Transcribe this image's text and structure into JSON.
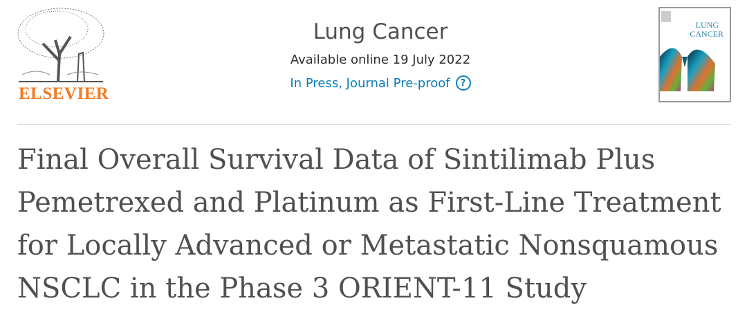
{
  "publisher": {
    "name": "ELSEVIER",
    "brand_color": "#f47a20",
    "logo_icon": "tree-logo-icon"
  },
  "journal": {
    "name": "Lung Cancer",
    "availability": "Available online 19 July 2022",
    "status": "In Press, Journal Pre-proof",
    "status_color": "#0c7dbb",
    "help_icon": "question-circle-icon"
  },
  "cover": {
    "journal_title_line1": "LUNG",
    "journal_title_line2": "CANCER"
  },
  "article": {
    "title": "Final Overall Survival Data of Sintilimab Plus Pemetrexed and Platinum as First-Line Treatment for Locally Advanced or Metastatic Nonsquamous NSCLC in the Phase 3 ORIENT-11 Study"
  }
}
